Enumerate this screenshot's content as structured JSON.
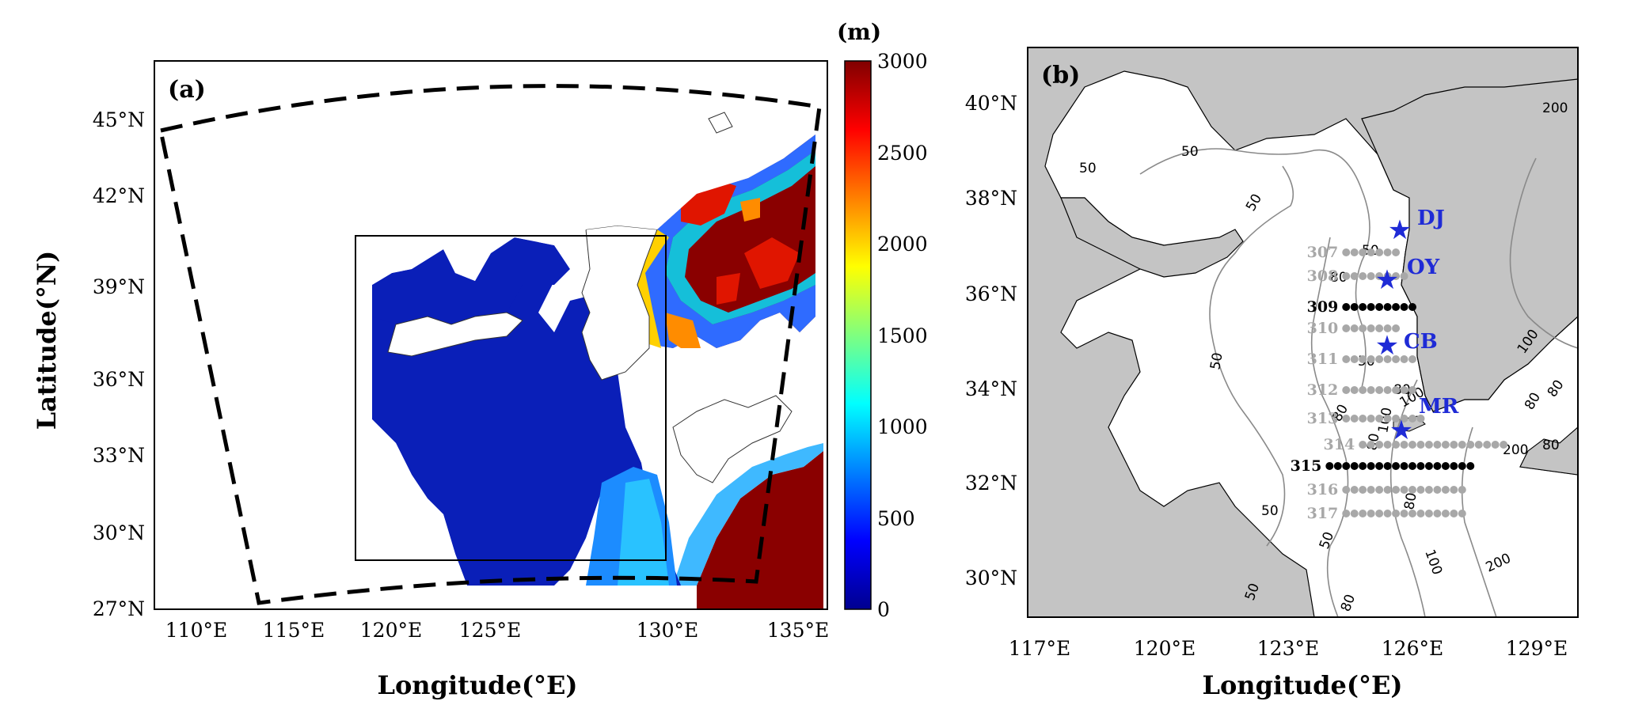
{
  "panel_a": {
    "label": "(a)",
    "xlabel": "Longitude(°E)",
    "ylabel": "Latitude(°N)",
    "xticks": [
      "110°E",
      "115°E",
      "120°E",
      "125°E",
      "130°E",
      "135°E"
    ],
    "yticks": [
      "27°N",
      "30°N",
      "33°N",
      "36°N",
      "39°N",
      "42°N",
      "45°N"
    ],
    "colorbar": {
      "unit": "(m)",
      "ticks": [
        "0",
        "500",
        "1000",
        "1500",
        "2000",
        "2500",
        "3000"
      ],
      "range": [
        0,
        3000
      ],
      "colormap": "jet"
    }
  },
  "panel_b": {
    "label": "(b)",
    "xlabel": "Longitude(°E)",
    "xticks": [
      "117°E",
      "120°E",
      "123°E",
      "126°E",
      "129°E"
    ],
    "yticks": [
      "30°N",
      "32°N",
      "34°N",
      "36°N",
      "38°N",
      "40°N"
    ],
    "land_color": "#c4c4c4",
    "sites": [
      "DJ",
      "OY",
      "CB",
      "MR"
    ],
    "site_color": "#1f2bd6",
    "sections": [
      {
        "label": "307",
        "highlight": false,
        "lat": 37.0,
        "lon_start": 124.4,
        "lon_end": 125.6
      },
      {
        "label": "308",
        "highlight": false,
        "lat": 36.5,
        "lon_start": 124.4,
        "lon_end": 125.8
      },
      {
        "label": "309",
        "highlight": true,
        "lat": 35.85,
        "lon_start": 124.4,
        "lon_end": 126.0
      },
      {
        "label": "310",
        "highlight": false,
        "lat": 35.4,
        "lon_start": 124.4,
        "lon_end": 125.6
      },
      {
        "label": "311",
        "highlight": false,
        "lat": 34.75,
        "lon_start": 124.4,
        "lon_end": 126.0
      },
      {
        "label": "312",
        "highlight": false,
        "lat": 34.1,
        "lon_start": 124.4,
        "lon_end": 126.0
      },
      {
        "label": "313",
        "highlight": false,
        "lat": 33.5,
        "lon_start": 124.4,
        "lon_end": 126.2
      },
      {
        "label": "314",
        "highlight": false,
        "lat": 32.95,
        "lon_start": 124.8,
        "lon_end": 128.2
      },
      {
        "label": "315",
        "highlight": true,
        "lat": 32.5,
        "lon_start": 124.0,
        "lon_end": 127.4
      },
      {
        "label": "316",
        "highlight": false,
        "lat": 32.0,
        "lon_start": 124.4,
        "lon_end": 127.2
      },
      {
        "label": "317",
        "highlight": false,
        "lat": 31.5,
        "lon_start": 124.4,
        "lon_end": 127.2
      }
    ],
    "contour_labels": [
      "50",
      "50",
      "50",
      "50",
      "50",
      "50",
      "50",
      "50",
      "50",
      "80",
      "80",
      "80",
      "80",
      "80",
      "80",
      "80",
      "100",
      "100",
      "100",
      "100",
      "200",
      "200",
      "200",
      "80",
      "80"
    ]
  }
}
